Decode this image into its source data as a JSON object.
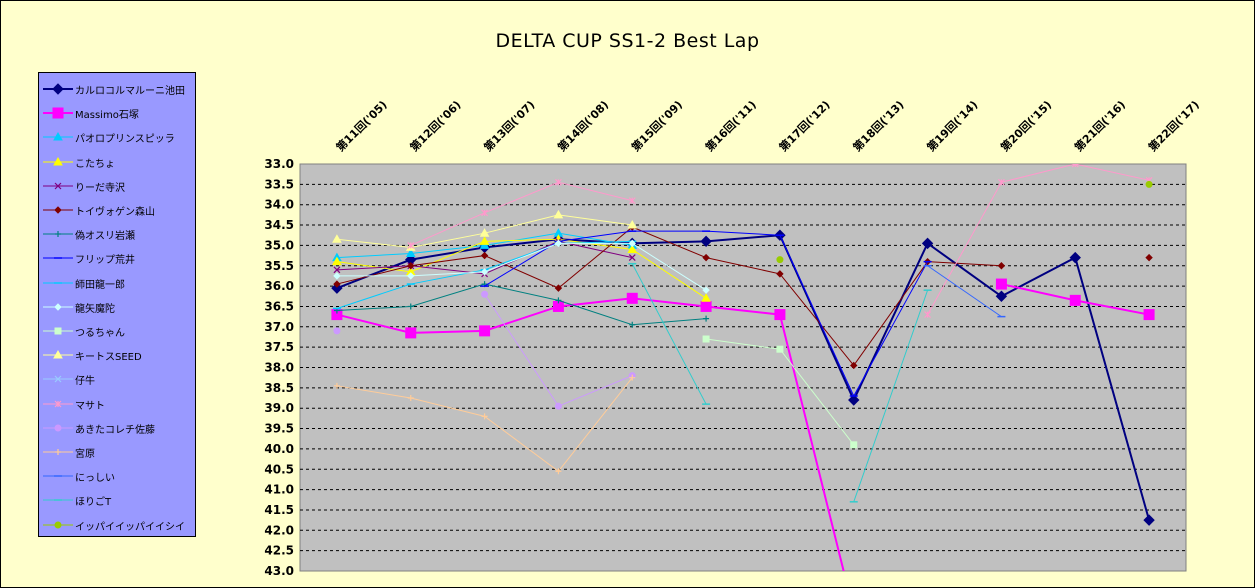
{
  "chart_data": {
    "type": "line",
    "title": "DELTA  CUP SS1-2 Best Lap",
    "categories": [
      "第11回('05)",
      "第12回('06)",
      "第13回('07)",
      "第14回('08)",
      "第15回('09)",
      "第16回('11)",
      "第17回('12)",
      "第18回('13)",
      "第19回('14)",
      "第20回('15)",
      "第21回('16)",
      "第22回('17)"
    ],
    "y_ticks": [
      "33.0",
      "33.5",
      "34.0",
      "34.5",
      "35.0",
      "35.5",
      "36.0",
      "36.5",
      "37.0",
      "37.5",
      "38.0",
      "38.5",
      "39.0",
      "39.5",
      "40.0",
      "40.5",
      "41.0",
      "41.5",
      "42.0",
      "42.5",
      "43.0"
    ],
    "ylim": [
      43.0,
      33.0
    ],
    "y_inverted": true,
    "grid": "horizontal-dashed",
    "legend_position": "left",
    "plot_background": "#c0c0c0",
    "series": [
      {
        "name": "カルロコルマルーニ池田",
        "color": "#000080",
        "marker": "diamond",
        "width": 2,
        "values": [
          36.05,
          35.35,
          35.05,
          34.85,
          34.95,
          34.9,
          34.75,
          38.8,
          34.95,
          36.25,
          35.3,
          41.75
        ]
      },
      {
        "name": "Massimo石塚",
        "color": "#ff00ff",
        "marker": "square",
        "width": 2,
        "values": [
          36.7,
          37.15,
          37.1,
          36.5,
          36.3,
          36.5,
          36.7,
          44.0,
          null,
          35.95,
          36.35,
          36.7
        ]
      },
      {
        "name": "パオロプリンスピッラ",
        "color": "#00ccff",
        "marker": "triangle",
        "width": 1,
        "values": [
          35.3,
          35.2,
          35.0,
          34.7,
          35.0,
          null,
          null,
          null,
          null,
          null,
          null,
          null
        ]
      },
      {
        "name": "こたちょ",
        "color": "#ffff00",
        "marker": "triangle",
        "width": 1,
        "values": [
          35.4,
          35.65,
          34.9,
          34.85,
          35.1,
          36.3,
          null,
          null,
          null,
          null,
          null,
          null
        ]
      },
      {
        "name": "りーだ寺沢",
        "color": "#800080",
        "marker": "x",
        "width": 1,
        "values": [
          35.6,
          35.5,
          35.7,
          34.9,
          35.3,
          null,
          null,
          null,
          null,
          null,
          null,
          null
        ]
      },
      {
        "name": "トイヴォゲン森山",
        "color": "#800000",
        "marker": "diamond",
        "width": 1,
        "values": [
          35.95,
          35.5,
          35.25,
          36.05,
          34.55,
          35.3,
          35.7,
          37.95,
          35.4,
          35.5,
          null,
          35.3
        ]
      },
      {
        "name": "偽オスリ岩瀬",
        "color": "#008080",
        "marker": "plus",
        "width": 1,
        "values": [
          36.6,
          36.5,
          35.95,
          36.35,
          36.95,
          36.8,
          null,
          null,
          null,
          null,
          null,
          null
        ]
      },
      {
        "name": "フリップ荒井",
        "color": "#0000ff",
        "marker": "dash",
        "width": 1,
        "values": [
          null,
          null,
          36.0,
          34.9,
          34.65,
          34.65,
          34.75,
          38.7,
          35.4,
          null,
          null,
          null
        ]
      },
      {
        "name": "師田龍一郎",
        "color": "#00ccff",
        "marker": "dash",
        "width": 1,
        "values": [
          36.55,
          35.95,
          35.6,
          34.95,
          34.9,
          null,
          null,
          null,
          null,
          null,
          null,
          null
        ]
      },
      {
        "name": "龍矢魔陀",
        "color": "#ccffff",
        "marker": "diamond",
        "width": 1,
        "values": [
          35.75,
          35.75,
          35.65,
          34.95,
          34.95,
          36.1,
          null,
          null,
          null,
          null,
          null,
          null
        ]
      },
      {
        "name": "つるちゃん",
        "color": "#ccffcc",
        "marker": "square",
        "width": 1,
        "values": [
          null,
          null,
          null,
          null,
          null,
          37.3,
          37.55,
          39.9,
          null,
          null,
          null,
          null
        ]
      },
      {
        "name": "キートスSEED",
        "color": "#ffff99",
        "marker": "triangle",
        "width": 1,
        "values": [
          34.85,
          35.05,
          34.7,
          34.25,
          34.5,
          null,
          null,
          null,
          null,
          null,
          null,
          null
        ]
      },
      {
        "name": "仔牛",
        "color": "#99ccff",
        "marker": "x",
        "width": 1,
        "values": [
          null,
          null,
          null,
          null,
          null,
          null,
          null,
          null,
          null,
          null,
          null,
          null
        ]
      },
      {
        "name": "マサト",
        "color": "#ff99cc",
        "marker": "asterisk",
        "width": 1,
        "values": [
          null,
          35.0,
          34.2,
          33.45,
          33.9,
          null,
          null,
          null,
          36.7,
          33.45,
          33.0,
          33.4
        ]
      },
      {
        "name": "あきたコレチ佐藤",
        "color": "#cc99ff",
        "marker": "circle",
        "width": 1,
        "values": [
          37.1,
          null,
          36.2,
          38.95,
          38.2,
          null,
          null,
          null,
          null,
          null,
          null,
          null
        ]
      },
      {
        "name": "宮原",
        "color": "#ffcc99",
        "marker": "plus",
        "width": 1,
        "values": [
          38.45,
          38.75,
          39.2,
          40.55,
          38.25,
          null,
          null,
          null,
          null,
          null,
          null,
          null
        ]
      },
      {
        "name": "にっしい",
        "color": "#3366ff",
        "marker": "dash",
        "width": 1,
        "values": [
          null,
          null,
          null,
          null,
          null,
          null,
          null,
          null,
          35.5,
          36.75,
          null,
          null
        ]
      },
      {
        "name": "ほりごT",
        "color": "#33cccc",
        "marker": "dash",
        "width": 1,
        "values": [
          null,
          null,
          null,
          null,
          35.45,
          38.9,
          null,
          41.3,
          36.1,
          null,
          null,
          null
        ]
      },
      {
        "name": "イッパイイッパイイシイ",
        "color": "#99cc00",
        "marker": "circle",
        "width": 1,
        "values": [
          null,
          null,
          null,
          null,
          null,
          null,
          35.35,
          null,
          null,
          null,
          null,
          33.5
        ]
      }
    ]
  }
}
